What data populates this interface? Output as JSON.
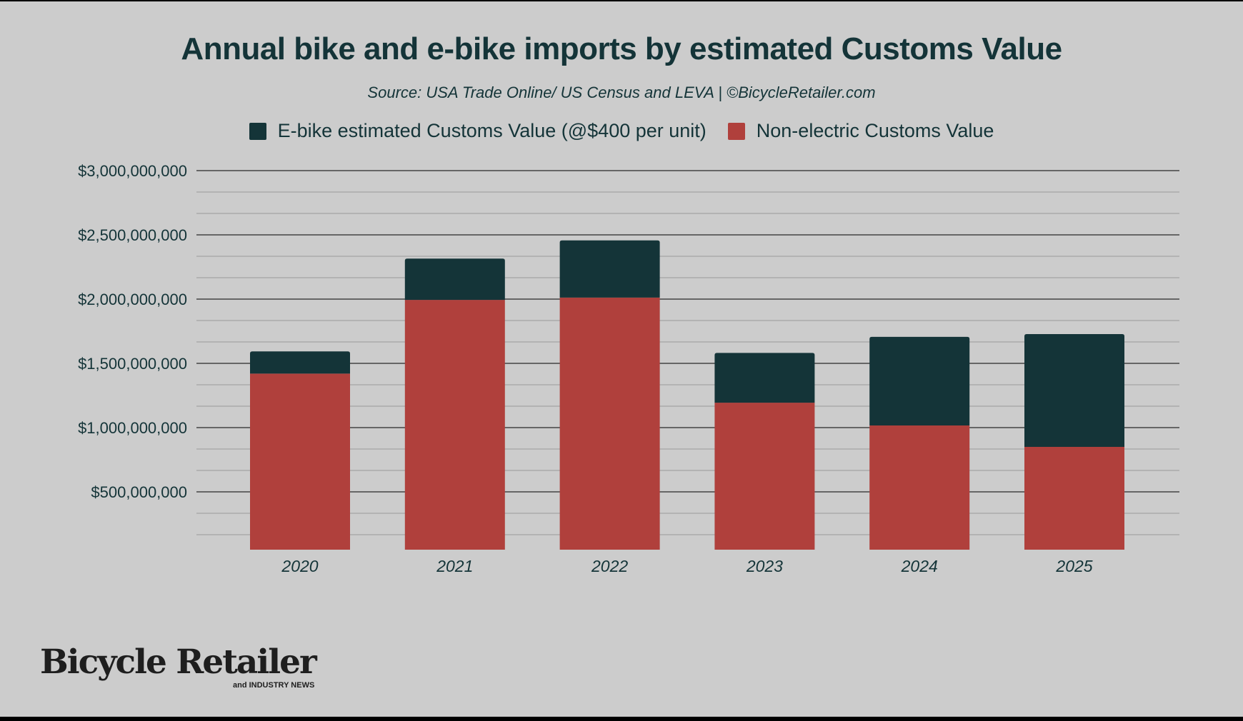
{
  "chart_data": {
    "type": "bar",
    "stacked": true,
    "title": "Annual bike and e-bike imports by estimated Customs Value",
    "subtitle": "Source: USA Trade Online/ US Census and LEVA | ©BicycleRetailer.com",
    "xlabel": "",
    "ylabel": "",
    "categories": [
      "2020",
      "2021",
      "2022",
      "2023",
      "2024",
      "2025"
    ],
    "series": [
      {
        "name": "Non-electric Customs Value",
        "color": "#b0403c",
        "values": [
          1420000000,
          1994000000,
          2012000000,
          1194000000,
          1017000000,
          850000000
        ]
      },
      {
        "name": "E-bike estimated Customs Value (@$400 per unit)",
        "color": "#143438",
        "values": [
          173000000,
          321000000,
          445000000,
          387000000,
          689000000,
          878000000
        ]
      }
    ],
    "legend_order": [
      1,
      0
    ],
    "ylim": [
      0,
      3000000000
    ],
    "yticks": [
      500000000,
      1000000000,
      1500000000,
      2000000000,
      2500000000,
      3000000000
    ],
    "ytick_labels": [
      "$500,000,000",
      "$1,000,000,000",
      "$1,500,000,000",
      "$2,000,000,000",
      "$2,500,000,000",
      "$3,000,000,000"
    ],
    "grid": true,
    "legend_position": "top"
  },
  "logo": {
    "name": "Bicycle Retailer",
    "tagline": "and INDUSTRY NEWS"
  }
}
